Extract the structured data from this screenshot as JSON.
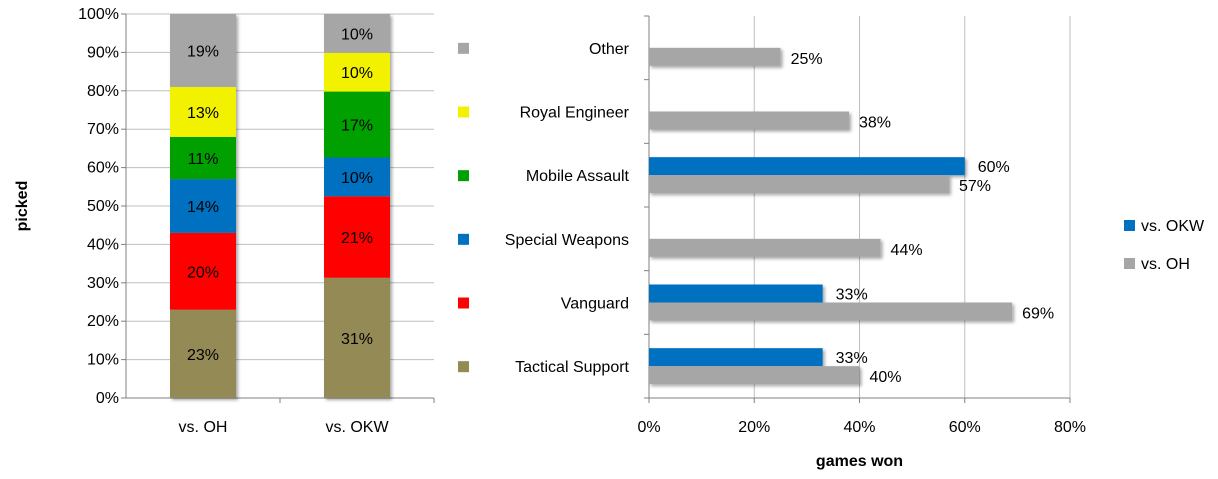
{
  "chart_data": [
    {
      "type": "bar",
      "stacked": true,
      "percent": true,
      "categories": [
        "vs. OH",
        "vs. OKW"
      ],
      "ylabel": "picked",
      "xlabel": "",
      "ylim": [
        0,
        100
      ],
      "yticks": [
        "0%",
        "10%",
        "20%",
        "30%",
        "40%",
        "50%",
        "60%",
        "70%",
        "80%",
        "90%",
        "100%"
      ],
      "grid": true,
      "series": [
        {
          "name": "Tactical Support",
          "color": "#948A54",
          "values": [
            23,
            31
          ],
          "labels": [
            "23%",
            "31%"
          ]
        },
        {
          "name": "Vanguard",
          "color": "#FF0000",
          "values": [
            20,
            21
          ],
          "labels": [
            "20%",
            "21%"
          ]
        },
        {
          "name": "Special Weapons",
          "color": "#0070C0",
          "values": [
            14,
            10
          ],
          "labels": [
            "14%",
            "10%"
          ]
        },
        {
          "name": "Mobile Assault",
          "color": "#00A000",
          "values": [
            11,
            17
          ],
          "labels": [
            "11%",
            "17%"
          ]
        },
        {
          "name": "Royal Engineer",
          "color": "#F2F200",
          "values": [
            13,
            10
          ],
          "labels": [
            "13%",
            "10%"
          ]
        },
        {
          "name": "Other",
          "color": "#A6A6A6",
          "values": [
            19,
            10
          ],
          "labels": [
            "19%",
            "10%"
          ]
        }
      ]
    },
    {
      "type": "bar",
      "orientation": "horizontal",
      "categories": [
        "Other",
        "Royal Engineer",
        "Mobile Assault",
        "Special Weapons",
        "Vanguard",
        "Tactical Support"
      ],
      "category_marker_colors": [
        "#A6A6A6",
        "#F2F200",
        "#00A000",
        "#0070C0",
        "#FF0000",
        "#948A54"
      ],
      "xlabel": "games won",
      "ylabel": "",
      "xlim": [
        0,
        80
      ],
      "xticks": [
        "0%",
        "20%",
        "40%",
        "60%",
        "80%"
      ],
      "grid": true,
      "legend_position": "right",
      "series": [
        {
          "name": "vs. OKW",
          "color": "#0070C0",
          "values": [
            null,
            null,
            60,
            null,
            33,
            33
          ],
          "labels": [
            "",
            "",
            "60%",
            "",
            "33%",
            "33%"
          ]
        },
        {
          "name": "vs. OH",
          "color": "#A6A6A6",
          "values": [
            25,
            38,
            57,
            44,
            69,
            40
          ],
          "labels": [
            "25%",
            "38%",
            "57%",
            "44%",
            "69%",
            "40%"
          ]
        }
      ]
    }
  ]
}
